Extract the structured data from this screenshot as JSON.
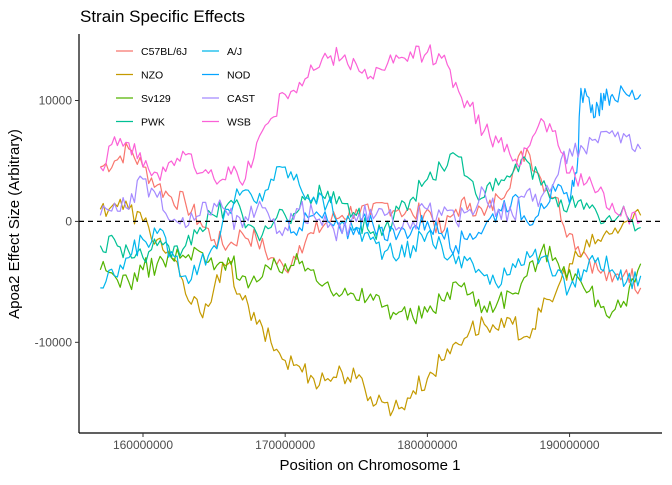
{
  "chart_data": {
    "type": "line",
    "title": "Strain Specific Effects",
    "xlabel": "Position on Chromosome 1",
    "ylabel": "Apoa2 Effect Size (Arbitrary)",
    "xlim": [
      155500000,
      196500000
    ],
    "ylim": [
      -17500,
      15500
    ],
    "x_ticks": [
      160000000,
      170000000,
      180000000,
      190000000
    ],
    "x_tick_labels": [
      "160000000",
      "170000000",
      "180000000",
      "190000000"
    ],
    "y_ticks": [
      -10000,
      0,
      10000
    ],
    "y_tick_labels": [
      "-10000",
      "0",
      "10000"
    ],
    "reference_line": {
      "y": 0,
      "style": "dashed"
    },
    "legend_position": "top-left",
    "grid": false,
    "series": [
      {
        "name": "C57BL/6J",
        "color": "#F8766D",
        "x": [
          157000000,
          158000000,
          159000000,
          160000000,
          161000000,
          162000000,
          163000000,
          164000000,
          165000000,
          166000000,
          167000000,
          168000000,
          169000000,
          170000000,
          171000000,
          172000000,
          173000000,
          174000000,
          175000000,
          176000000,
          177000000,
          178000000,
          179000000,
          180000000,
          181000000,
          182000000,
          183000000,
          184000000,
          185000000,
          186000000,
          187000000,
          188000000,
          189000000,
          190000000,
          191000000,
          192000000,
          193000000,
          194000000,
          195000000
        ],
        "y": [
          4500,
          5000,
          6000,
          4500,
          3000,
          2000,
          1500,
          0,
          -1500,
          -2000,
          -1000,
          -1500,
          -3000,
          -4000,
          -2000,
          -1000,
          0,
          500,
          1000,
          500,
          1500,
          1000,
          500,
          1000,
          -1000,
          1000,
          1500,
          500,
          2000,
          4000,
          6000,
          3500,
          2000,
          -1000,
          -2500,
          -4000,
          -5000,
          -4000,
          -5500
        ]
      },
      {
        "name": "NZO",
        "color": "#C49A00",
        "x": [
          157000000,
          158000000,
          159000000,
          160000000,
          161000000,
          162000000,
          163000000,
          164000000,
          165000000,
          166000000,
          167000000,
          168000000,
          169000000,
          170000000,
          171000000,
          172000000,
          173000000,
          174000000,
          175000000,
          176000000,
          177000000,
          178000000,
          179000000,
          180000000,
          181000000,
          182000000,
          183000000,
          184000000,
          185000000,
          186000000,
          187000000,
          188000000,
          189000000,
          190000000,
          191000000,
          192000000,
          193000000,
          194000000,
          195000000
        ],
        "y": [
          1000,
          1500,
          1000,
          0,
          -1500,
          -3000,
          -6000,
          -7500,
          -5500,
          -3500,
          -6500,
          -8500,
          -10000,
          -11500,
          -12000,
          -13000,
          -13000,
          -12500,
          -13000,
          -14500,
          -15000,
          -15500,
          -14000,
          -13000,
          -11500,
          -10000,
          -9000,
          -8500,
          -9000,
          -8500,
          -9500,
          -7500,
          -6000,
          -3500,
          -2500,
          -1500,
          -1000,
          0,
          500
        ]
      },
      {
        "name": "Sv129",
        "color": "#53B400",
        "x": [
          157000000,
          158000000,
          159000000,
          160000000,
          161000000,
          162000000,
          163000000,
          164000000,
          165000000,
          166000000,
          167000000,
          168000000,
          169000000,
          170000000,
          171000000,
          172000000,
          173000000,
          174000000,
          175000000,
          176000000,
          177000000,
          178000000,
          179000000,
          180000000,
          181000000,
          182000000,
          183000000,
          184000000,
          185000000,
          186000000,
          187000000,
          188000000,
          189000000,
          190000000,
          191000000,
          192000000,
          193000000,
          194000000,
          195000000
        ],
        "y": [
          -4000,
          -4500,
          -5000,
          -4000,
          -3500,
          -3000,
          -3000,
          -2500,
          -4000,
          -3000,
          -4500,
          -5000,
          -4000,
          -3500,
          -3500,
          -4000,
          -5000,
          -6000,
          -6500,
          -6000,
          -7000,
          -7500,
          -8000,
          -7500,
          -6500,
          -5000,
          -6000,
          -7000,
          -6500,
          -6000,
          -4500,
          -2500,
          -3000,
          -4000,
          -5500,
          -6500,
          -7500,
          -7000,
          -3500
        ]
      },
      {
        "name": "PWK",
        "color": "#00C094",
        "x": [
          157000000,
          158000000,
          159000000,
          160000000,
          161000000,
          162000000,
          163000000,
          164000000,
          165000000,
          166000000,
          167000000,
          168000000,
          169000000,
          170000000,
          171000000,
          172000000,
          173000000,
          174000000,
          175000000,
          176000000,
          177000000,
          178000000,
          179000000,
          180000000,
          181000000,
          182000000,
          183000000,
          184000000,
          185000000,
          186000000,
          187000000,
          188000000,
          189000000,
          190000000,
          191000000,
          192000000,
          193000000,
          194000000,
          195000000
        ],
        "y": [
          -2000,
          -1500,
          -2500,
          -3000,
          -2000,
          -3000,
          -2000,
          -500,
          500,
          1500,
          500,
          -1000,
          -500,
          500,
          1000,
          2000,
          2500,
          1500,
          500,
          -1000,
          -500,
          1000,
          2000,
          3500,
          4500,
          5500,
          3500,
          2000,
          3000,
          4000,
          5000,
          3000,
          2000,
          1500,
          1000,
          500,
          0,
          500,
          -500
        ]
      },
      {
        "name": "A/J",
        "color": "#00B6EB",
        "x": [
          157000000,
          158000000,
          159000000,
          160000000,
          161000000,
          162000000,
          163000000,
          164000000,
          165000000,
          166000000,
          167000000,
          168000000,
          169000000,
          170000000,
          171000000,
          172000000,
          173000000,
          174000000,
          175000000,
          176000000,
          177000000,
          178000000,
          179000000,
          180000000,
          181000000,
          182000000,
          183000000,
          184000000,
          185000000,
          186000000,
          187000000,
          188000000,
          189000000,
          190000000,
          191000000,
          192000000,
          193000000,
          194000000,
          195000000
        ],
        "y": [
          -5500,
          -4500,
          -3000,
          -1500,
          -1000,
          -2500,
          -4500,
          -3500,
          -2000,
          1000,
          2500,
          1500,
          3500,
          4500,
          3000,
          2000,
          1500,
          0,
          -500,
          -1500,
          -2500,
          -3000,
          -2000,
          -1000,
          -2000,
          -3500,
          -3000,
          -4500,
          -5500,
          -3500,
          -2500,
          -3000,
          -4500,
          -5500,
          -4000,
          -3000,
          -4000,
          -5000,
          -4500
        ]
      },
      {
        "name": "NOD",
        "color": "#06A4FF",
        "x": [
          170000000,
          171000000,
          172000000,
          173000000,
          174000000,
          175000000,
          176000000,
          177000000,
          178000000,
          179000000,
          180000000,
          181000000,
          182000000,
          183000000,
          184000000,
          185000000,
          186000000,
          187000000,
          188000000,
          189000000,
          190000000,
          190500000,
          190800000,
          191500000,
          192000000,
          192500000,
          193000000,
          194000000,
          195000000
        ],
        "y": [
          0,
          -500,
          500,
          0,
          -1000,
          -500,
          500,
          -1500,
          -1000,
          -500,
          0,
          -1000,
          -2000,
          -1000,
          -500,
          1000,
          2000,
          0,
          1500,
          2500,
          1500,
          4000,
          11000,
          9000,
          9500,
          10000,
          10500,
          10500,
          10500
        ]
      },
      {
        "name": "CAST",
        "color": "#A58AFF",
        "x": [
          157000000,
          158000000,
          159000000,
          160000000,
          161000000,
          162000000,
          163000000,
          164000000,
          165000000,
          166000000,
          167000000,
          168000000,
          169000000,
          170000000,
          171000000,
          172000000,
          173000000,
          174000000,
          175000000,
          176000000,
          177000000,
          178000000,
          179000000,
          180000000,
          181000000,
          182000000,
          183000000,
          184000000,
          185000000,
          186000000,
          187000000,
          188000000,
          189000000,
          190000000,
          191000000,
          192000000,
          193000000,
          194000000,
          195000000
        ],
        "y": [
          500,
          1500,
          1000,
          3500,
          2000,
          0,
          -500,
          500,
          1500,
          500,
          -500,
          1000,
          0,
          -500,
          1000,
          500,
          -500,
          -1000,
          0,
          1000,
          500,
          -500,
          0,
          1000,
          500,
          0,
          1000,
          2500,
          1000,
          500,
          2500,
          2000,
          3500,
          6000,
          6000,
          6500,
          7500,
          7000,
          6000
        ]
      },
      {
        "name": "WSB",
        "color": "#FB61D7",
        "x": [
          157000000,
          158000000,
          159000000,
          160000000,
          161000000,
          162000000,
          163000000,
          164000000,
          165000000,
          166000000,
          167000000,
          168000000,
          169000000,
          170000000,
          171000000,
          172000000,
          173000000,
          174000000,
          175000000,
          176000000,
          177000000,
          178000000,
          179000000,
          180000000,
          181000000,
          182000000,
          183000000,
          184000000,
          185000000,
          186000000,
          187000000,
          188000000,
          189000000,
          190000000,
          191000000,
          192000000,
          193000000,
          194000000,
          195000000
        ],
        "y": [
          4500,
          7000,
          6500,
          4500,
          4000,
          5000,
          5500,
          4000,
          3500,
          4500,
          3000,
          6500,
          8500,
          10500,
          11500,
          12500,
          13500,
          13500,
          13000,
          12000,
          12500,
          13500,
          13500,
          14000,
          13500,
          11500,
          9500,
          7500,
          6500,
          5000,
          6000,
          8500,
          7500,
          4000,
          3000,
          2500,
          1500,
          500,
          0
        ]
      }
    ]
  }
}
